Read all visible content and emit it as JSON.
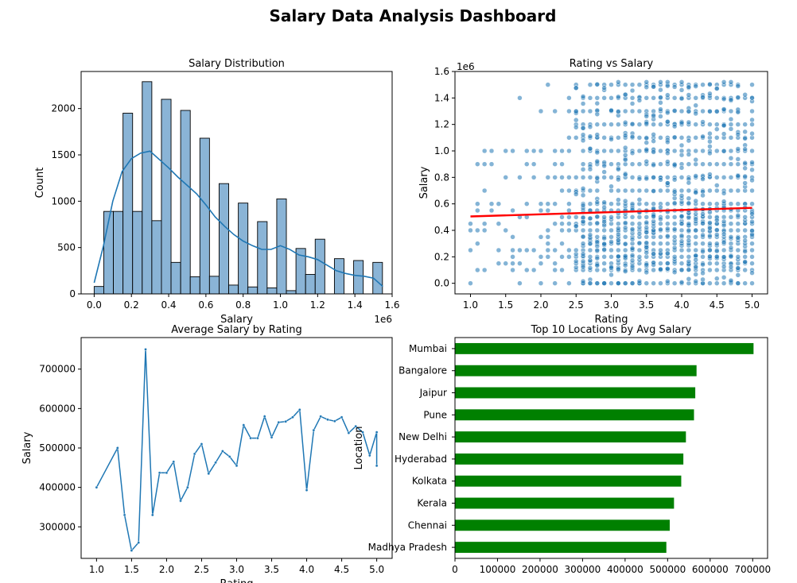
{
  "page_title": "Salary Data Analysis Dashboard",
  "chart_data": [
    {
      "type": "bar",
      "subtype": "histogram-with-kde",
      "title": "Salary Distribution",
      "xlabel": "Salary",
      "ylabel": "Count",
      "x_scale_label": "1e6",
      "xlim": [
        -0.07,
        1.6
      ],
      "ylim": [
        0,
        2400
      ],
      "x_ticks": [
        0.0,
        0.2,
        0.4,
        0.6,
        0.8,
        1.0,
        1.2,
        1.4,
        1.6
      ],
      "x_tick_labels": [
        "0.0",
        "0.2",
        "0.4",
        "0.6",
        "0.8",
        "1.0",
        "1.2",
        "1.4",
        "1.6"
      ],
      "y_ticks": [
        0,
        500,
        1000,
        1500,
        2000
      ],
      "y_tick_labels": [
        "0",
        "500",
        "1000",
        "1500",
        "2000"
      ],
      "bin_width": 0.0516,
      "bin_start": 0.0,
      "values": [
        80,
        890,
        890,
        1950,
        890,
        2290,
        790,
        2100,
        340,
        1980,
        185,
        1680,
        190,
        1190,
        95,
        980,
        75,
        780,
        65,
        1025,
        35,
        490,
        210,
        590,
        0,
        380,
        0,
        360,
        0,
        340
      ],
      "kde_x": [
        0.0,
        0.05,
        0.1,
        0.15,
        0.2,
        0.25,
        0.3,
        0.35,
        0.4,
        0.45,
        0.5,
        0.55,
        0.6,
        0.65,
        0.7,
        0.75,
        0.8,
        0.85,
        0.9,
        0.95,
        1.0,
        1.05,
        1.1,
        1.15,
        1.2,
        1.25,
        1.3,
        1.35,
        1.4,
        1.45,
        1.5,
        1.55
      ],
      "kde_y": [
        120,
        520,
        1000,
        1320,
        1460,
        1520,
        1540,
        1450,
        1360,
        1260,
        1170,
        1080,
        960,
        830,
        730,
        640,
        570,
        520,
        480,
        480,
        520,
        480,
        420,
        400,
        370,
        310,
        250,
        220,
        200,
        190,
        170,
        80
      ],
      "color": "#1f77b4",
      "bar_fill": "#8ab4d6"
    },
    {
      "type": "scatter",
      "title": "Rating vs Salary",
      "xlabel": "Rating",
      "ylabel": "Salary",
      "y_scale_label": "1e6",
      "xlim": [
        0.78,
        5.22
      ],
      "ylim": [
        -0.08,
        1.6
      ],
      "x_ticks": [
        1.0,
        1.5,
        2.0,
        2.5,
        3.0,
        3.5,
        4.0,
        4.5,
        5.0
      ],
      "x_tick_labels": [
        "1.0",
        "1.5",
        "2.0",
        "2.5",
        "3.0",
        "3.5",
        "4.0",
        "4.5",
        "5.0"
      ],
      "y_ticks": [
        0.0,
        0.2,
        0.4,
        0.6,
        0.8,
        1.0,
        1.2,
        1.4,
        1.6
      ],
      "y_tick_labels": [
        "0.0",
        "0.2",
        "0.4",
        "0.6",
        "0.8",
        "1.0",
        "1.2",
        "1.4",
        "1.6"
      ],
      "salary_levels": [
        0.0,
        0.1,
        0.15,
        0.2,
        0.25,
        0.3,
        0.35,
        0.4,
        0.45,
        0.5,
        0.55,
        0.6,
        0.7,
        0.8,
        0.9,
        1.0,
        1.1,
        1.2,
        1.3,
        1.4,
        1.5
      ],
      "regression_line": [
        [
          1.0,
          0.505
        ],
        [
          5.0,
          0.57
        ]
      ],
      "point_color": "#1f77b4",
      "line_color": "#ff0000"
    },
    {
      "type": "line",
      "title": "Average Salary by Rating",
      "xlabel": "Rating",
      "ylabel": "Salary",
      "xlim": [
        0.78,
        5.22
      ],
      "ylim": [
        220000,
        780000
      ],
      "x_ticks": [
        1.0,
        1.5,
        2.0,
        2.5,
        3.0,
        3.5,
        4.0,
        4.5,
        5.0
      ],
      "x_tick_labels": [
        "1.0",
        "1.5",
        "2.0",
        "2.5",
        "3.0",
        "3.5",
        "4.0",
        "4.5",
        "5.0"
      ],
      "y_ticks": [
        300000,
        400000,
        500000,
        600000,
        700000
      ],
      "y_tick_labels": [
        "300000",
        "400000",
        "500000",
        "600000",
        "700000"
      ],
      "x": [
        1.0,
        1.3,
        1.4,
        1.5,
        1.6,
        1.7,
        1.8,
        1.9,
        2.0,
        2.1,
        2.2,
        2.3,
        2.4,
        2.5,
        2.6,
        2.7,
        2.8,
        2.9,
        3.0,
        3.1,
        3.2,
        3.3,
        3.4,
        3.5,
        3.6,
        3.7,
        3.8,
        3.9,
        4.0,
        4.1,
        4.2,
        4.3,
        4.4,
        4.5,
        4.6,
        4.7,
        4.8,
        4.9,
        5.0
      ],
      "y": [
        400000,
        500000,
        330000,
        240000,
        260000,
        750000,
        330000,
        437000,
        437000,
        465000,
        366000,
        400000,
        485000,
        510000,
        435000,
        463000,
        492000,
        478000,
        455000,
        558000,
        525000,
        525000,
        580000,
        527000,
        565000,
        567000,
        578000,
        597000,
        393000,
        545000,
        580000,
        572000,
        568000,
        578000,
        538000,
        555000,
        540000,
        481000,
        540000
      ],
      "x_tail": [
        5.0
      ],
      "y_tail": [
        455000
      ],
      "color": "#1f77b4"
    },
    {
      "type": "bar",
      "orientation": "horizontal",
      "title": "Top 10 Locations by Avg Salary",
      "xlabel": "",
      "ylabel": "Location",
      "xlim": [
        0,
        735000
      ],
      "x_ticks": [
        0,
        100000,
        200000,
        300000,
        400000,
        500000,
        600000,
        700000
      ],
      "x_tick_labels": [
        "0",
        "100000",
        "200000",
        "300000",
        "400000",
        "500000",
        "600000",
        "700000"
      ],
      "categories": [
        "Mumbai",
        "Bangalore",
        "Jaipur",
        "Pune",
        "New Delhi",
        "Hyderabad",
        "Kolkata",
        "Kerala",
        "Chennai",
        "Madhya Pradesh"
      ],
      "values": [
        702000,
        568000,
        565000,
        562000,
        543000,
        537000,
        532000,
        515000,
        505000,
        497000
      ],
      "color": "#008000"
    }
  ]
}
